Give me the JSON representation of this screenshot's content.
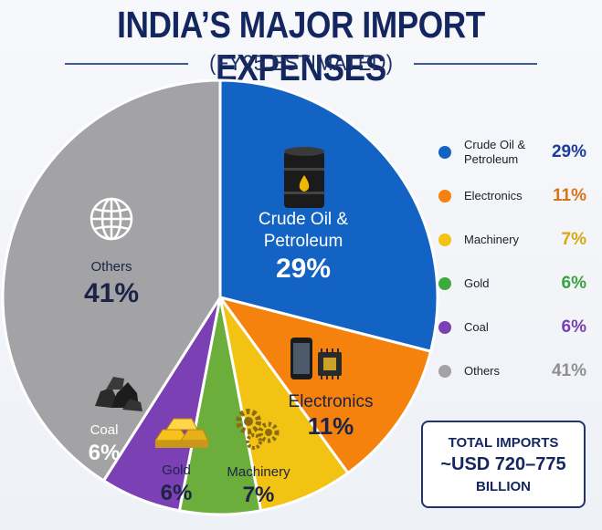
{
  "header": {
    "title": "INDIA’S MAJOR IMPORT EXPENSES",
    "subtitle": "(FY25 ESTIMATED)"
  },
  "chart_data": {
    "type": "pie",
    "slices": [
      {
        "label": "Crude Oil & Petroleum",
        "pie_label_lines": [
          "Crude Oil &",
          "Petroleum"
        ],
        "value": 29,
        "display": "29%",
        "color": "#1363c4",
        "label_color": "#ffffff",
        "icon": "oil-barrel-icon"
      },
      {
        "label": "Electronics",
        "pie_label_lines": [
          "Electronics"
        ],
        "value": 11,
        "display": "11%",
        "color": "#f5820d",
        "label_color": "#1c2347",
        "icon": "smartphone-chip-icon"
      },
      {
        "label": "Machinery",
        "pie_label_lines": [
          "Machinery"
        ],
        "value": 7,
        "display": "7%",
        "color": "#f3c313",
        "label_color": "#1c2347",
        "icon": "gears-icon"
      },
      {
        "label": "Gold",
        "pie_label_lines": [
          "Gold"
        ],
        "value": 6,
        "display": "6%",
        "color": "#6cae3c",
        "label_color": "#1c2347",
        "icon": "gold-bars-icon"
      },
      {
        "label": "Coal",
        "pie_label_lines": [
          "Coal"
        ],
        "value": 6,
        "display": "6%",
        "color": "#7b40b4",
        "label_color": "#ffffff",
        "icon": "coal-lumps-icon"
      },
      {
        "label": "Others",
        "pie_label_lines": [
          "Others"
        ],
        "value": 41,
        "display": "41%",
        "color": "#a3a3a5",
        "label_color": "#1c2347",
        "icon": "globe-icon"
      }
    ],
    "start_position": "top, clockwise"
  },
  "legend": {
    "items": [
      {
        "label": "Crude Oil & Petroleum",
        "display": "29%",
        "color": "#1363c4",
        "pct_color": "#1b3c9e"
      },
      {
        "label": "Electronics",
        "display": "11%",
        "color": "#f5820d",
        "pct_color": "#d9731a"
      },
      {
        "label": "Machinery",
        "display": "7%",
        "color": "#f3c313",
        "pct_color": "#d8a90f"
      },
      {
        "label": "Gold",
        "display": "6%",
        "color": "#3caa3c",
        "pct_color": "#39a33c"
      },
      {
        "label": "Coal",
        "display": "6%",
        "color": "#7b40b4",
        "pct_color": "#7a3fb3"
      },
      {
        "label": "Others",
        "display": "41%",
        "color": "#a3a3a5",
        "pct_color": "#8f8f91"
      }
    ]
  },
  "total": {
    "line1": "TOTAL IMPORTS",
    "line2": "~USD 720–775",
    "line3": "BILLION"
  }
}
